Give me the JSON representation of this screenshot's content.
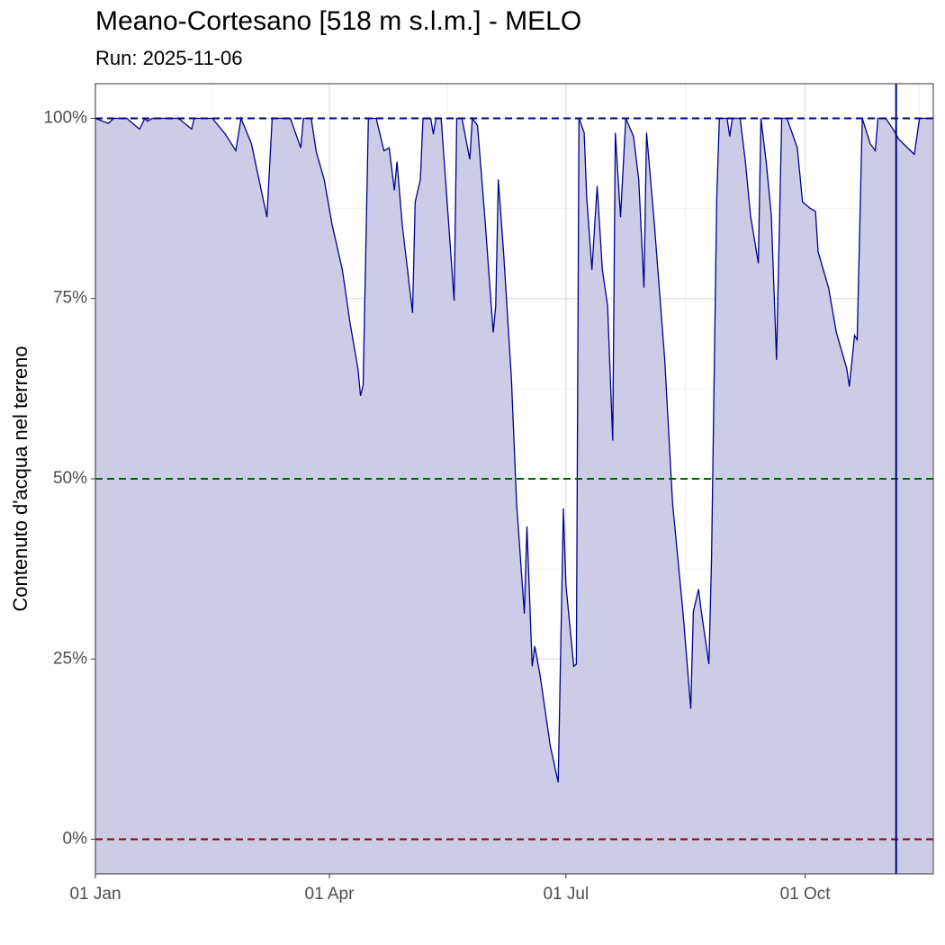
{
  "chart_data": {
    "type": "area",
    "title": "Meano-Cortesano [518 m s.l.m.] - MELO",
    "subtitle": "Run: 2025-11-06",
    "y_label": "Contenuto d'acqua nel terreno",
    "line_color": "#00008b",
    "fill_color": "#cccce6",
    "x": [
      0,
      5,
      7,
      12,
      17,
      19,
      20,
      22,
      32,
      37,
      38,
      45,
      50,
      54,
      56,
      60,
      66,
      68,
      75,
      79,
      80,
      83,
      85,
      88,
      91,
      95,
      98,
      101,
      102,
      103,
      105,
      108,
      111,
      113,
      115,
      116,
      118,
      122,
      123,
      125,
      126,
      129,
      130,
      131,
      133,
      138,
      139,
      141,
      144,
      145,
      147,
      150,
      153,
      154,
      155,
      157,
      160,
      162,
      165,
      166,
      168,
      169,
      171,
      173,
      175,
      178,
      180,
      181,
      184,
      185,
      186,
      188,
      189,
      191,
      193,
      195,
      197,
      199,
      200,
      202,
      204,
      207,
      209,
      211,
      212,
      215,
      219,
      222,
      226,
      229,
      230,
      232,
      233,
      236,
      237,
      239,
      240,
      243,
      244,
      245,
      248,
      250,
      252,
      255,
      256,
      258,
      260,
      262,
      264,
      266,
      270,
      272,
      275,
      277,
      278,
      282,
      285,
      289,
      290,
      292,
      293,
      295,
      298,
      300,
      301,
      304,
      307,
      309,
      315,
      317,
      322
    ],
    "values": [
      100,
      99.3,
      100,
      100,
      98.5,
      100,
      99.6,
      100,
      100,
      98.5,
      100,
      100,
      97.8,
      95.5,
      100,
      96.5,
      86.3,
      100,
      100,
      95.9,
      100,
      100,
      95.3,
      91.5,
      85.3,
      79,
      71.5,
      65.3,
      61.5,
      63,
      100,
      100,
      95.5,
      95.9,
      90,
      94,
      85.3,
      73,
      88.4,
      91.5,
      100,
      100,
      97.8,
      100,
      100,
      74.7,
      100,
      100,
      94.3,
      100,
      99,
      85.3,
      70.3,
      74,
      91.5,
      81.5,
      64,
      46.6,
      31.3,
      43.4,
      24,
      26.8,
      22.8,
      17.9,
      12.9,
      7.9,
      45.9,
      35.3,
      24,
      24.3,
      100,
      98,
      89,
      79,
      90.6,
      79,
      74,
      55.3,
      98,
      86.3,
      100,
      97.5,
      91.5,
      76.5,
      98,
      85.3,
      66.5,
      46.6,
      31.6,
      18.1,
      31.6,
      34.7,
      31.8,
      24.3,
      39,
      89,
      100,
      100,
      97.5,
      100,
      100,
      94,
      86.5,
      79.9,
      100,
      94,
      86.5,
      66.5,
      100,
      100,
      95.9,
      88.4,
      87.5,
      87.1,
      81.5,
      76.5,
      70.3,
      65.3,
      62.8,
      69.9,
      69.3,
      100,
      96.5,
      95.5,
      100,
      100,
      98.4,
      97.1,
      95,
      100,
      100
    ],
    "xlim": [
      0,
      322.3
    ],
    "ylim": [
      -4.8,
      104.8
    ],
    "xticks": [
      {
        "value": 0,
        "label": "01 Jan"
      },
      {
        "value": 90,
        "label": "01 Apr"
      },
      {
        "value": 181,
        "label": "01 Jul"
      },
      {
        "value": 273,
        "label": "01 Oct"
      }
    ],
    "x_minor_grid": [
      45,
      135.5,
      227,
      317
    ],
    "yticks": [
      {
        "value": 0,
        "label": "0%"
      },
      {
        "value": 25,
        "label": "25%"
      },
      {
        "value": 50,
        "label": "50%"
      },
      {
        "value": 75,
        "label": "75%"
      },
      {
        "value": 100,
        "label": "100%"
      }
    ],
    "y_minor_grid": [
      12.5,
      37.5,
      62.5,
      87.5
    ],
    "reference_lines": [
      {
        "value": 100,
        "color": "#00008b"
      },
      {
        "value": 50,
        "color": "#006400"
      },
      {
        "value": 0,
        "color": "#8b0000"
      }
    ],
    "vline": {
      "value": 308,
      "color": "#00008b"
    }
  }
}
